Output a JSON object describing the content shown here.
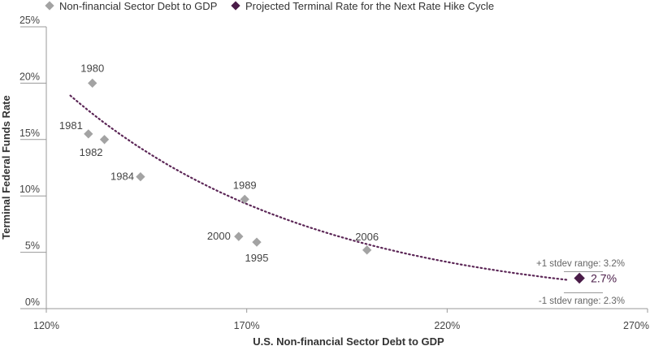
{
  "chart_data": {
    "type": "scatter",
    "xlabel": "U.S. Non-financial Sector Debt to GDP",
    "ylabel": "Terminal Federal Funds Rate",
    "xlim": [
      120,
      270
    ],
    "ylim": [
      0,
      25
    ],
    "x_ticks": [
      "120%",
      "170%",
      "220%",
      "270%"
    ],
    "x_tick_values": [
      120,
      170,
      220,
      270
    ],
    "y_ticks": [
      "0%",
      "5%",
      "10%",
      "15%",
      "20%",
      "25%"
    ],
    "y_tick_values": [
      0,
      5,
      10,
      15,
      20,
      25
    ],
    "grid": false,
    "legend_position": "top-left",
    "series": [
      {
        "name": "Non-financial Sector Debt to GDP",
        "marker": "diamond",
        "color": "#a3a3a3",
        "points": [
          {
            "label": "1980",
            "x": 131.5,
            "y": 20.0
          },
          {
            "label": "1981",
            "x": 130.5,
            "y": 15.5
          },
          {
            "label": "1982",
            "x": 134.5,
            "y": 15.0
          },
          {
            "label": "1984",
            "x": 143.5,
            "y": 11.7
          },
          {
            "label": "1989",
            "x": 169.5,
            "y": 9.7
          },
          {
            "label": "2000",
            "x": 168.0,
            "y": 6.4
          },
          {
            "label": "1995",
            "x": 172.5,
            "y": 5.9
          },
          {
            "label": "2006",
            "x": 200.0,
            "y": 5.2
          }
        ]
      },
      {
        "name": "Projected Terminal Rate for the Next Rate Hike Cycle",
        "marker": "diamond",
        "color": "#4a1c48",
        "points": [
          {
            "label": "2.7%",
            "x": 253.0,
            "y": 2.7
          }
        ]
      }
    ],
    "trendline": {
      "style": "dotted",
      "color": "#5c2757",
      "x_range": [
        126,
        250
      ],
      "y_start": 18.9,
      "y_end": 2.55
    },
    "annotations": {
      "upper": "+1 stdev range: 3.2%",
      "lower": "-1 stdev range: 2.3%"
    }
  }
}
